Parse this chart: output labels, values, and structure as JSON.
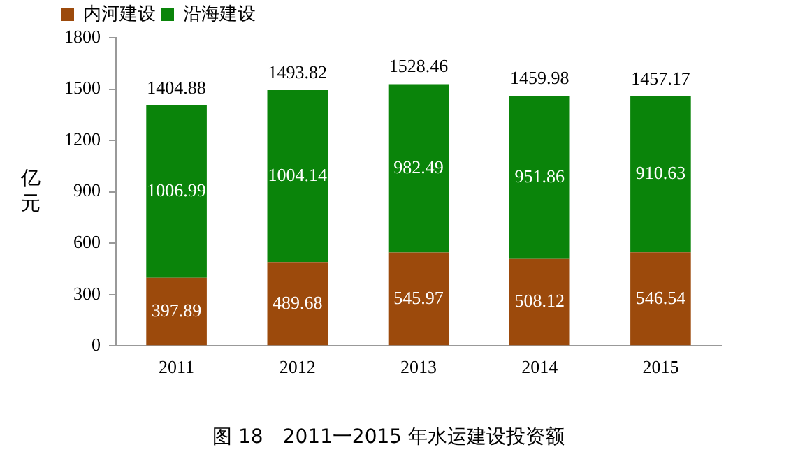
{
  "chart_data": {
    "type": "bar",
    "title": "图 18　2011一2015 年水运建设投资额",
    "ylabel": "亿元",
    "categories": [
      "2011",
      "2012",
      "2013",
      "2014",
      "2015"
    ],
    "series": [
      {
        "name": "内河建设",
        "color": "#9c4a0c",
        "values": [
          397.89,
          489.68,
          545.97,
          508.12,
          546.54
        ]
      },
      {
        "name": "沿海建设",
        "color": "#0a840a",
        "values": [
          1006.99,
          1004.14,
          982.49,
          951.86,
          910.63
        ]
      }
    ],
    "stacked": true,
    "data_labels": true,
    "totals": [
      "1404.88",
      "1493.82",
      "1528.46",
      "1459.98",
      "1457.17"
    ],
    "ylim": [
      0,
      1800
    ],
    "yticks": [
      0,
      300,
      600,
      900,
      1200,
      1500,
      1800
    ],
    "grid": false,
    "legend": "top left"
  }
}
